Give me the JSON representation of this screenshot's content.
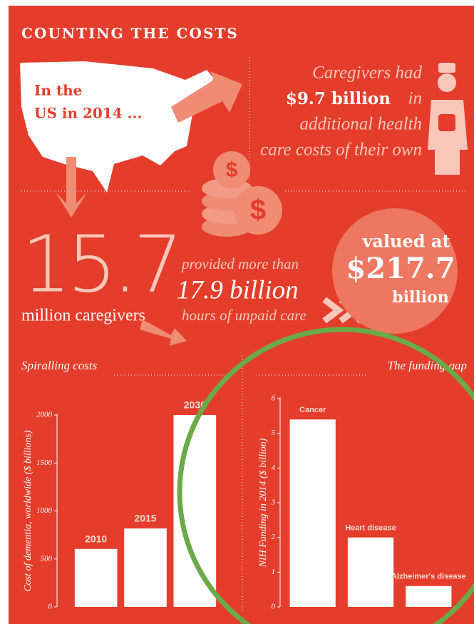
{
  "header": {
    "title": "COUNTING THE COSTS"
  },
  "us": {
    "line1": "In the",
    "line2": "US in 2014 ..."
  },
  "health": {
    "line1": "Caregivers had",
    "amount": "$9.7 billion",
    "line2_end": "in",
    "line3": "additional health",
    "line4": "care costs of their own"
  },
  "caregivers": {
    "number": "15.7",
    "label": "million caregivers"
  },
  "hours": {
    "intro": "provided more than",
    "amount": "17.9 billion",
    "label": "hours of unpaid care"
  },
  "value": {
    "intro": "valued at",
    "amount": "$217.7",
    "unit": "billion"
  },
  "chart_data": [
    {
      "type": "bar",
      "title": "Spiralling costs",
      "y_label": "Cost of dementia, worldwide ($ billions)",
      "categories": [
        "2010",
        "2015",
        "2030"
      ],
      "values": [
        604,
        818,
        2000
      ],
      "color": "#ffffff",
      "ylim": [
        0,
        2000
      ],
      "yticks": [
        0,
        500,
        1000,
        1500,
        2000
      ]
    },
    {
      "type": "bar",
      "title": "The funding gap",
      "y_label": "NIH Funding in 2014 ($ billion)",
      "categories": [
        "Cancer",
        "Heart disease",
        "Alzheimer's disease"
      ],
      "values": [
        5.4,
        2.0,
        0.6
      ],
      "color": "#ffffff",
      "ylim": [
        0,
        6
      ],
      "yticks": [
        0,
        1,
        2,
        3,
        4,
        5,
        6
      ]
    }
  ]
}
